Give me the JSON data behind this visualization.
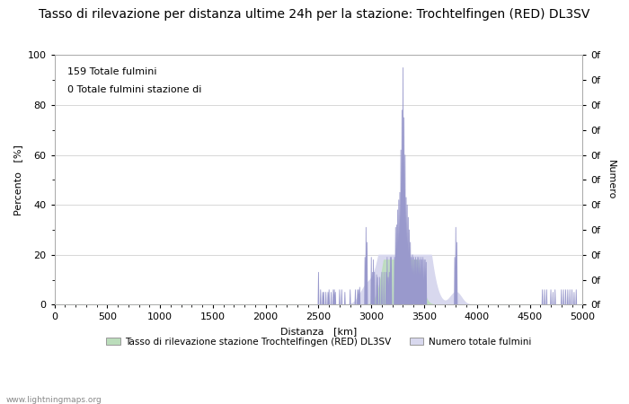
{
  "title": "Tasso di rilevazione per distanza ultime 24h per la stazione: Trochtelfingen (RED) DL3SV",
  "xlabel": "Distanza   [km]",
  "ylabel_left": "Percento   [%]",
  "ylabel_right": "Numero",
  "annotation_line1": "159 Totale fulmini",
  "annotation_line2": "0 Totale fulmini stazione di",
  "xlim": [
    0,
    5000
  ],
  "ylim": [
    0,
    100
  ],
  "xticks": [
    0,
    500,
    1000,
    1500,
    2000,
    2500,
    3000,
    3500,
    4000,
    4500,
    5000
  ],
  "yticks_left": [
    0,
    20,
    40,
    60,
    80,
    100
  ],
  "right_tick_label": "0f",
  "bg_color": "#ffffff",
  "grid_color": "#c8c8c8",
  "line_color": "#9999cc",
  "fill_blue_color": "#d8d8ee",
  "fill_green_color": "#bbddbb",
  "legend_label1": "Tasso di rilevazione stazione Trochtelfingen (RED) DL3SV",
  "legend_label2": "Numero totale fulmini",
  "watermark": "www.lightningmaps.org",
  "title_fontsize": 10,
  "label_fontsize": 8,
  "tick_fontsize": 8,
  "figwidth": 7.0,
  "figheight": 4.5,
  "dpi": 100
}
